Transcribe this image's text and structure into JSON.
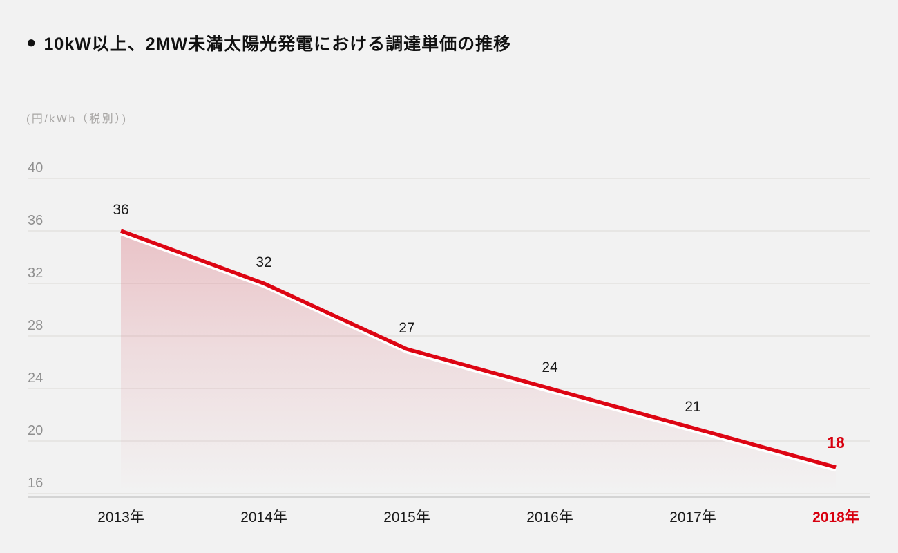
{
  "title": {
    "bullet_icon": "●",
    "text": "10kW以上、2MW未満太陽光発電における調達単価の推移"
  },
  "unit_label": "(円/kWh（税別）)",
  "colors": {
    "background": "#f2f2f2",
    "line_red": "#dd0513",
    "highlight_red": "#d7000f",
    "area_pink": "#d96673",
    "line_halo": "#ffffff",
    "gridline": "#e3e1e0",
    "axis_line": "#d4d4d4",
    "tick_text": "#8f8f8f",
    "label_text": "#1a1a1a"
  },
  "chart_data": {
    "type": "area",
    "title": "10kW以上、2MW未満太陽光発電における調達単価の推移",
    "ylabel": "(円/kWh（税別）)",
    "categories": [
      "2013年",
      "2014年",
      "2015年",
      "2016年",
      "2017年",
      "2018年"
    ],
    "values": [
      36,
      32,
      27,
      24,
      21,
      18
    ],
    "data_labels": [
      "36",
      "32",
      "27",
      "24",
      "21",
      "18"
    ],
    "yticks": [
      40,
      36,
      32,
      28,
      24,
      20,
      16
    ],
    "ylim": [
      16,
      40
    ],
    "grid": true,
    "legend_position": "none",
    "highlight_last_index": 5
  }
}
